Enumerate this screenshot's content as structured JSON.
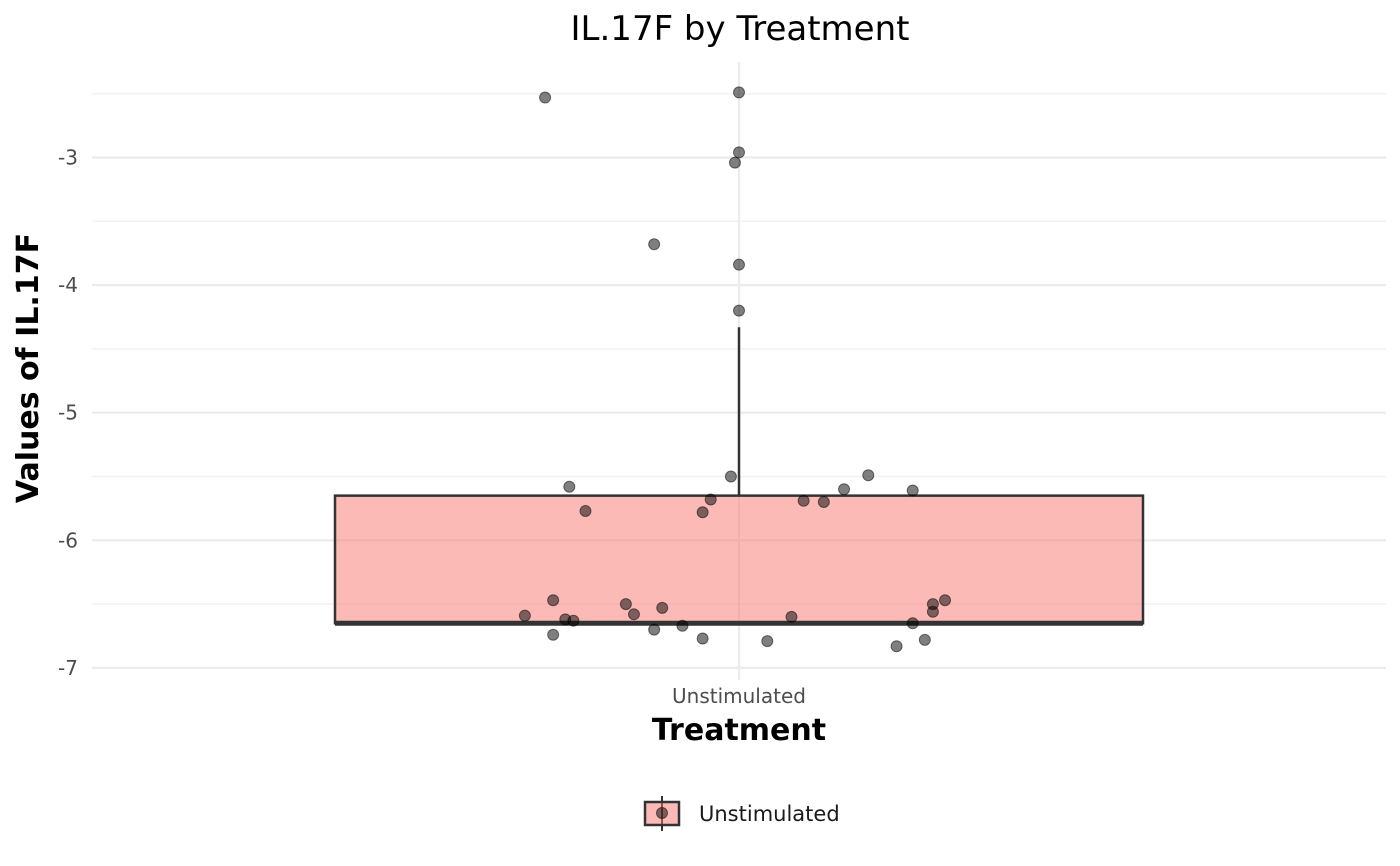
{
  "chart_data": {
    "type": "box",
    "title": "IL.17F by Treatment",
    "xlabel": "Treatment",
    "ylabel": "Values of IL.17F",
    "categories": [
      "Unstimulated"
    ],
    "ylim": [
      -7.0,
      -2.3
    ],
    "yticks": [
      -3,
      -4,
      -5,
      -6,
      -7
    ],
    "grid": true,
    "legend": {
      "position": "bottom",
      "entries": [
        "Unstimulated"
      ]
    },
    "colors": {
      "box_fill": "#f8766d",
      "box_stroke": "#333333",
      "point": "#000000",
      "grid_major": "#ebebeb",
      "grid_minor": "#f2f2f2"
    },
    "box": {
      "category": "Unstimulated",
      "q1": -6.65,
      "median": -6.65,
      "q3": -5.65,
      "whisker_low": -6.65,
      "whisker_high": -4.33
    },
    "points": [
      {
        "x": -0.48,
        "y": -2.53
      },
      {
        "x": 0.0,
        "y": -2.49
      },
      {
        "x": 0.0,
        "y": -2.96
      },
      {
        "x": -0.01,
        "y": -3.04
      },
      {
        "x": -0.21,
        "y": -3.68
      },
      {
        "x": 0.0,
        "y": -3.84
      },
      {
        "x": 0.0,
        "y": -4.2
      },
      {
        "x": -0.02,
        "y": -5.5
      },
      {
        "x": 0.32,
        "y": -5.49
      },
      {
        "x": -0.42,
        "y": -5.58
      },
      {
        "x": 0.26,
        "y": -5.6
      },
      {
        "x": 0.43,
        "y": -5.61
      },
      {
        "x": -0.07,
        "y": -5.68
      },
      {
        "x": 0.16,
        "y": -5.69
      },
      {
        "x": 0.21,
        "y": -5.7
      },
      {
        "x": -0.38,
        "y": -5.77
      },
      {
        "x": -0.09,
        "y": -5.78
      },
      {
        "x": -0.46,
        "y": -6.47
      },
      {
        "x": 0.51,
        "y": -6.47
      },
      {
        "x": -0.28,
        "y": -6.5
      },
      {
        "x": 0.48,
        "y": -6.5
      },
      {
        "x": -0.19,
        "y": -6.53
      },
      {
        "x": -0.26,
        "y": -6.58
      },
      {
        "x": 0.48,
        "y": -6.56
      },
      {
        "x": -0.53,
        "y": -6.59
      },
      {
        "x": 0.13,
        "y": -6.6
      },
      {
        "x": -0.43,
        "y": -6.62
      },
      {
        "x": -0.41,
        "y": -6.63
      },
      {
        "x": 0.43,
        "y": -6.65
      },
      {
        "x": -0.14,
        "y": -6.67
      },
      {
        "x": -0.21,
        "y": -6.7
      },
      {
        "x": -0.46,
        "y": -6.74
      },
      {
        "x": -0.09,
        "y": -6.77
      },
      {
        "x": 0.46,
        "y": -6.78
      },
      {
        "x": 0.07,
        "y": -6.79
      },
      {
        "x": 0.39,
        "y": -6.83
      }
    ]
  }
}
